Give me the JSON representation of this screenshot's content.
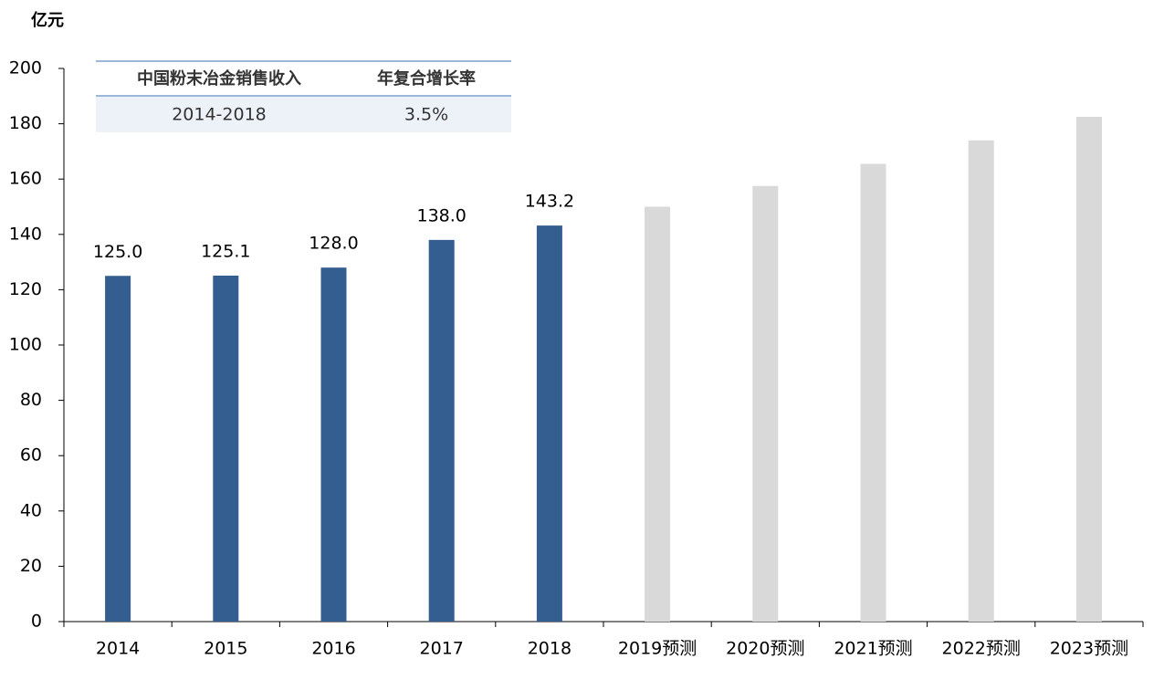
{
  "chart_data": {
    "type": "bar",
    "y_axis_label": "亿元",
    "categories": [
      "2014",
      "2015",
      "2016",
      "2017",
      "2018",
      "2019预测",
      "2020预测",
      "2021预测",
      "2022预测",
      "2023预测"
    ],
    "values": [
      125.0,
      125.1,
      128.0,
      138.0,
      143.2,
      150,
      157.5,
      165.5,
      174,
      182.5
    ],
    "value_labels": [
      "125.0",
      "125.1",
      "128.0",
      "138.0",
      "143.2",
      null,
      null,
      null,
      null,
      null
    ],
    "colors": [
      "#345e8f",
      "#345e8f",
      "#345e8f",
      "#345e8f",
      "#345e8f",
      "#d9d9d9",
      "#d9d9d9",
      "#d9d9d9",
      "#d9d9d9",
      "#d9d9d9"
    ],
    "ylim": [
      0,
      200
    ],
    "yticks": [
      0,
      20,
      40,
      60,
      80,
      100,
      120,
      140,
      160,
      180,
      200
    ],
    "grid": false,
    "table": {
      "header": [
        "中国粉末冶金销售收入",
        "年复合增长率"
      ],
      "rows": [
        [
          "2014-2018",
          "3.5%"
        ]
      ]
    }
  }
}
